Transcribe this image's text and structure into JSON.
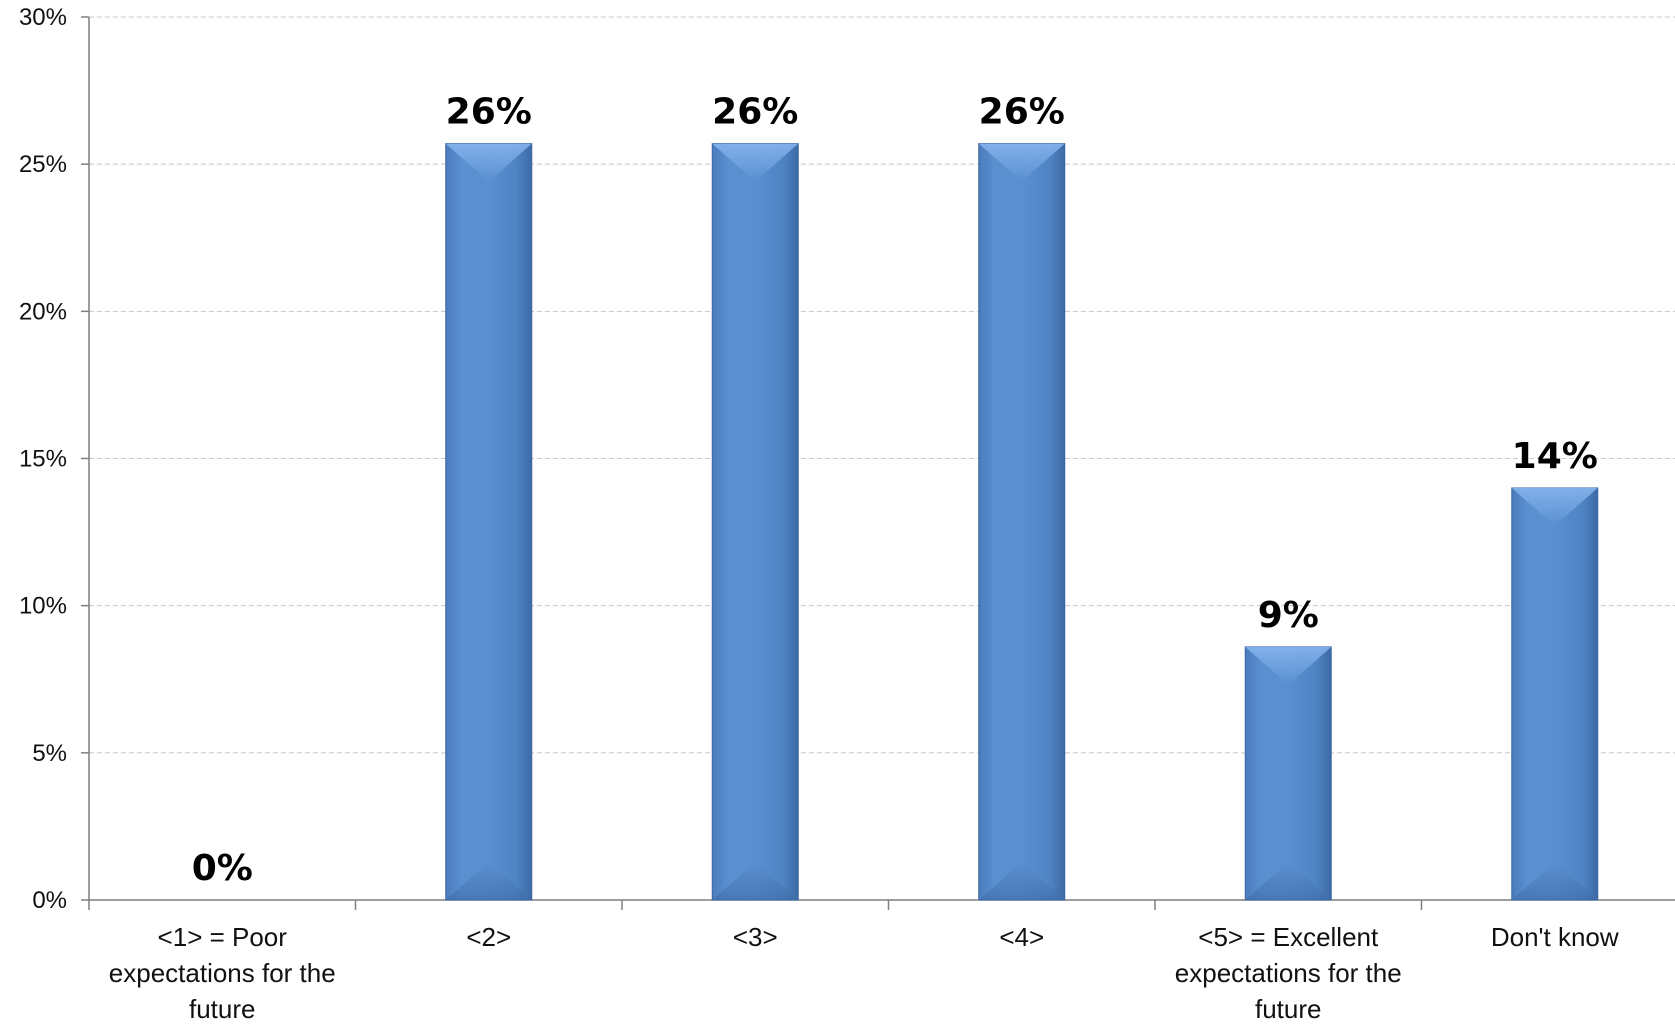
{
  "chart_data": {
    "type": "bar",
    "categories": [
      [
        "<1> = Poor",
        "expectations for the",
        "future"
      ],
      [
        "<2>"
      ],
      [
        "<3>"
      ],
      [
        "<4>"
      ],
      [
        "<5> = Excellent",
        "expectations for the",
        "future"
      ],
      [
        "Don't know"
      ]
    ],
    "values": [
      0,
      25.7,
      25.7,
      25.7,
      8.6,
      14.0
    ],
    "data_labels": [
      "0%",
      "26%",
      "26%",
      "26%",
      "9%",
      "14%"
    ],
    "y_ticks": [
      "0%",
      "5%",
      "10%",
      "15%",
      "20%",
      "25%",
      "30%"
    ],
    "ylim": [
      0,
      30
    ],
    "grid": true,
    "legend": "none",
    "title": "",
    "xlabel": "",
    "ylabel": "",
    "colors": {
      "bar_main": "#4f81bd",
      "bar_light": "#6fa0df",
      "bar_dark": "#3f6ea8",
      "gridline": "#c8c8c8",
      "axis": "#7f7f7f"
    }
  }
}
